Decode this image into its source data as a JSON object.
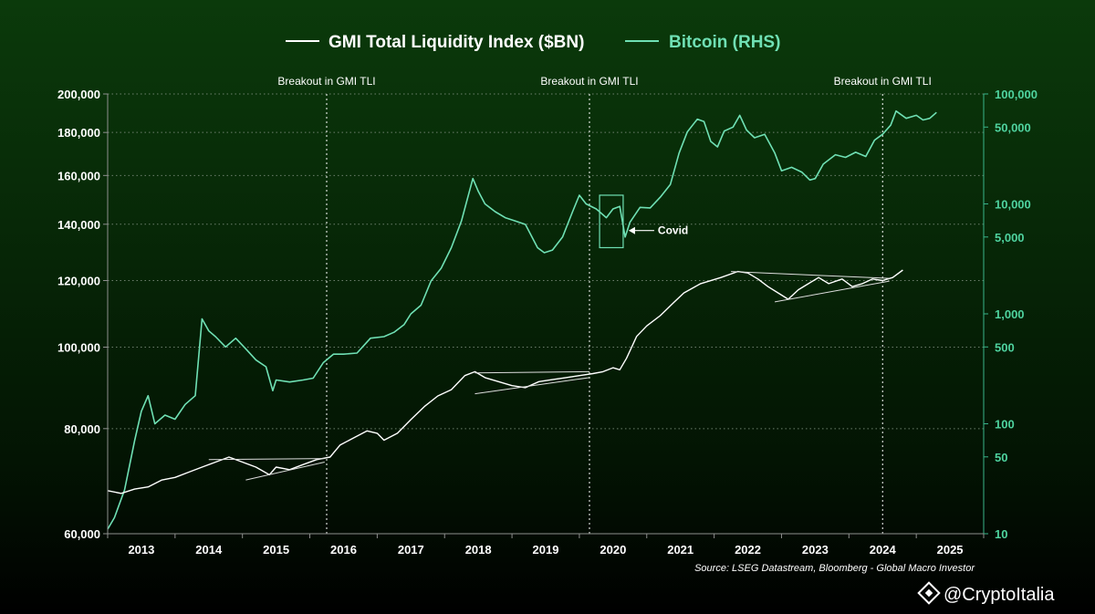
{
  "chart_data": {
    "type": "line",
    "legend": [
      {
        "name": "GMI Total Liquidity Index ($BN)",
        "color": "#ffffff"
      },
      {
        "name": "Bitcoin (RHS)",
        "color": "#6fe0b4"
      }
    ],
    "left_axis": {
      "scale": "log",
      "range": [
        60000,
        200000
      ],
      "ticks": [
        60000,
        80000,
        100000,
        120000,
        140000,
        160000,
        180000,
        200000
      ],
      "tick_labels": [
        "60,000",
        "80,000",
        "100,000",
        "120,000",
        "140,000",
        "160,000",
        "180,000",
        "200,000"
      ]
    },
    "right_axis": {
      "scale": "log",
      "range": [
        10,
        100000
      ],
      "ticks": [
        10,
        50,
        100,
        500,
        1000,
        5000,
        10000,
        50000,
        100000
      ],
      "tick_labels": [
        "10",
        "50",
        "100",
        "500",
        "1,000",
        "5,000",
        "10,000",
        "50,000",
        "100,000"
      ]
    },
    "x_axis": {
      "range": [
        2012.5,
        2025.5
      ],
      "tick_labels": [
        "2013",
        "2014",
        "2015",
        "2016",
        "2017",
        "2018",
        "2019",
        "2020",
        "2021",
        "2022",
        "2023",
        "2024",
        "2025"
      ]
    },
    "grid": "horizontal dotted",
    "breakouts": [
      {
        "x": 2015.75,
        "label": "Breakout in GMI TLI"
      },
      {
        "x": 2019.65,
        "label": "Breakout in GMI TLI"
      },
      {
        "x": 2024.0,
        "label": "Breakout in GMI TLI"
      }
    ],
    "covid_annotation": {
      "label": "Covid",
      "x_range": [
        2019.8,
        2020.15
      ],
      "btc_range": [
        4000,
        12000
      ]
    },
    "source": "Source: LSEG Datastream, Bloomberg - Global Macro Investor",
    "watermark": "@CryptoItalia",
    "series": [
      {
        "name": "GMI Total Liquidity Index ($BN)",
        "axis": "left",
        "color": "#ffffff",
        "points": [
          [
            2012.5,
            67500
          ],
          [
            2012.7,
            67000
          ],
          [
            2012.9,
            67800
          ],
          [
            2013.1,
            68200
          ],
          [
            2013.3,
            69500
          ],
          [
            2013.5,
            70000
          ],
          [
            2013.7,
            71000
          ],
          [
            2013.9,
            72000
          ],
          [
            2014.1,
            73000
          ],
          [
            2014.3,
            74000
          ],
          [
            2014.5,
            73000
          ],
          [
            2014.7,
            72000
          ],
          [
            2014.9,
            70500
          ],
          [
            2015.0,
            72000
          ],
          [
            2015.2,
            71500
          ],
          [
            2015.4,
            72500
          ],
          [
            2015.6,
            73500
          ],
          [
            2015.8,
            74000
          ],
          [
            2015.95,
            76500
          ],
          [
            2016.15,
            78000
          ],
          [
            2016.35,
            79500
          ],
          [
            2016.5,
            79000
          ],
          [
            2016.6,
            77500
          ],
          [
            2016.8,
            79000
          ],
          [
            2017.0,
            82000
          ],
          [
            2017.2,
            85000
          ],
          [
            2017.4,
            87500
          ],
          [
            2017.6,
            89000
          ],
          [
            2017.8,
            92500
          ],
          [
            2017.95,
            93500
          ],
          [
            2018.1,
            92000
          ],
          [
            2018.3,
            91000
          ],
          [
            2018.5,
            90000
          ],
          [
            2018.7,
            89500
          ],
          [
            2018.9,
            91000
          ],
          [
            2019.1,
            91500
          ],
          [
            2019.3,
            92000
          ],
          [
            2019.5,
            92500
          ],
          [
            2019.7,
            93000
          ],
          [
            2019.85,
            93500
          ],
          [
            2020.0,
            94500
          ],
          [
            2020.1,
            94000
          ],
          [
            2020.2,
            97000
          ],
          [
            2020.35,
            103000
          ],
          [
            2020.5,
            106000
          ],
          [
            2020.7,
            109000
          ],
          [
            2020.9,
            113000
          ],
          [
            2021.05,
            116000
          ],
          [
            2021.3,
            119000
          ],
          [
            2021.6,
            121000
          ],
          [
            2021.85,
            123000
          ],
          [
            2022.0,
            122500
          ],
          [
            2022.15,
            120500
          ],
          [
            2022.3,
            118000
          ],
          [
            2022.45,
            116000
          ],
          [
            2022.6,
            114000
          ],
          [
            2022.75,
            117000
          ],
          [
            2022.9,
            119000
          ],
          [
            2023.05,
            121000
          ],
          [
            2023.2,
            119000
          ],
          [
            2023.4,
            120500
          ],
          [
            2023.55,
            118000
          ],
          [
            2023.7,
            119000
          ],
          [
            2023.85,
            120500
          ],
          [
            2024.0,
            120000
          ],
          [
            2024.15,
            121000
          ],
          [
            2024.3,
            123500
          ]
        ]
      },
      {
        "name": "Bitcoin (RHS)",
        "axis": "right",
        "color": "#6fe0b4",
        "points": [
          [
            2012.5,
            11
          ],
          [
            2012.6,
            14
          ],
          [
            2012.75,
            25
          ],
          [
            2012.9,
            70
          ],
          [
            2013.0,
            130
          ],
          [
            2013.1,
            180
          ],
          [
            2013.2,
            100
          ],
          [
            2013.35,
            120
          ],
          [
            2013.5,
            110
          ],
          [
            2013.65,
            150
          ],
          [
            2013.8,
            180
          ],
          [
            2013.9,
            900
          ],
          [
            2014.0,
            700
          ],
          [
            2014.1,
            620
          ],
          [
            2014.25,
            500
          ],
          [
            2014.4,
            600
          ],
          [
            2014.55,
            480
          ],
          [
            2014.7,
            380
          ],
          [
            2014.85,
            330
          ],
          [
            2014.95,
            200
          ],
          [
            2015.0,
            250
          ],
          [
            2015.2,
            240
          ],
          [
            2015.4,
            250
          ],
          [
            2015.55,
            260
          ],
          [
            2015.7,
            360
          ],
          [
            2015.85,
            430
          ],
          [
            2016.0,
            430
          ],
          [
            2016.2,
            440
          ],
          [
            2016.4,
            600
          ],
          [
            2016.6,
            620
          ],
          [
            2016.75,
            680
          ],
          [
            2016.9,
            800
          ],
          [
            2017.0,
            1000
          ],
          [
            2017.15,
            1200
          ],
          [
            2017.3,
            2000
          ],
          [
            2017.45,
            2600
          ],
          [
            2017.6,
            4000
          ],
          [
            2017.75,
            7000
          ],
          [
            2017.92,
            17000
          ],
          [
            2018.0,
            13000
          ],
          [
            2018.1,
            10000
          ],
          [
            2018.25,
            8500
          ],
          [
            2018.4,
            7500
          ],
          [
            2018.55,
            7000
          ],
          [
            2018.7,
            6500
          ],
          [
            2018.88,
            4000
          ],
          [
            2018.98,
            3600
          ],
          [
            2019.1,
            3800
          ],
          [
            2019.25,
            5000
          ],
          [
            2019.4,
            8500
          ],
          [
            2019.5,
            12000
          ],
          [
            2019.6,
            10000
          ],
          [
            2019.75,
            9000
          ],
          [
            2019.9,
            7500
          ],
          [
            2020.0,
            9000
          ],
          [
            2020.1,
            9500
          ],
          [
            2020.18,
            5000
          ],
          [
            2020.25,
            6800
          ],
          [
            2020.4,
            9300
          ],
          [
            2020.55,
            9200
          ],
          [
            2020.7,
            11500
          ],
          [
            2020.85,
            15000
          ],
          [
            2020.98,
            29000
          ],
          [
            2021.1,
            45000
          ],
          [
            2021.25,
            59000
          ],
          [
            2021.35,
            56000
          ],
          [
            2021.45,
            37000
          ],
          [
            2021.55,
            33000
          ],
          [
            2021.65,
            46000
          ],
          [
            2021.78,
            50000
          ],
          [
            2021.88,
            64000
          ],
          [
            2021.98,
            47000
          ],
          [
            2022.1,
            40000
          ],
          [
            2022.25,
            43000
          ],
          [
            2022.4,
            29000
          ],
          [
            2022.5,
            20000
          ],
          [
            2022.65,
            21500
          ],
          [
            2022.8,
            19500
          ],
          [
            2022.92,
            16500
          ],
          [
            2023.0,
            17000
          ],
          [
            2023.12,
            23000
          ],
          [
            2023.3,
            28000
          ],
          [
            2023.45,
            26500
          ],
          [
            2023.6,
            29500
          ],
          [
            2023.75,
            27000
          ],
          [
            2023.88,
            38000
          ],
          [
            2024.0,
            43000
          ],
          [
            2024.12,
            52000
          ],
          [
            2024.2,
            70000
          ],
          [
            2024.35,
            60000
          ],
          [
            2024.5,
            64000
          ],
          [
            2024.6,
            58000
          ],
          [
            2024.7,
            60000
          ],
          [
            2024.8,
            68000
          ]
        ]
      }
    ],
    "trendlines": [
      [
        [
          2014.0,
          73500
        ],
        [
          2015.72,
          73700
        ]
      ],
      [
        [
          2014.55,
          69500
        ],
        [
          2015.72,
          73000
        ]
      ],
      [
        [
          2017.95,
          93200
        ],
        [
          2019.65,
          93500
        ]
      ],
      [
        [
          2017.95,
          88000
        ],
        [
          2019.65,
          92000
        ]
      ],
      [
        [
          2021.75,
          123000
        ],
        [
          2024.1,
          120700
        ]
      ],
      [
        [
          2022.4,
          113200
        ],
        [
          2024.1,
          119800
        ]
      ]
    ],
    "covid_label": "Covid"
  }
}
